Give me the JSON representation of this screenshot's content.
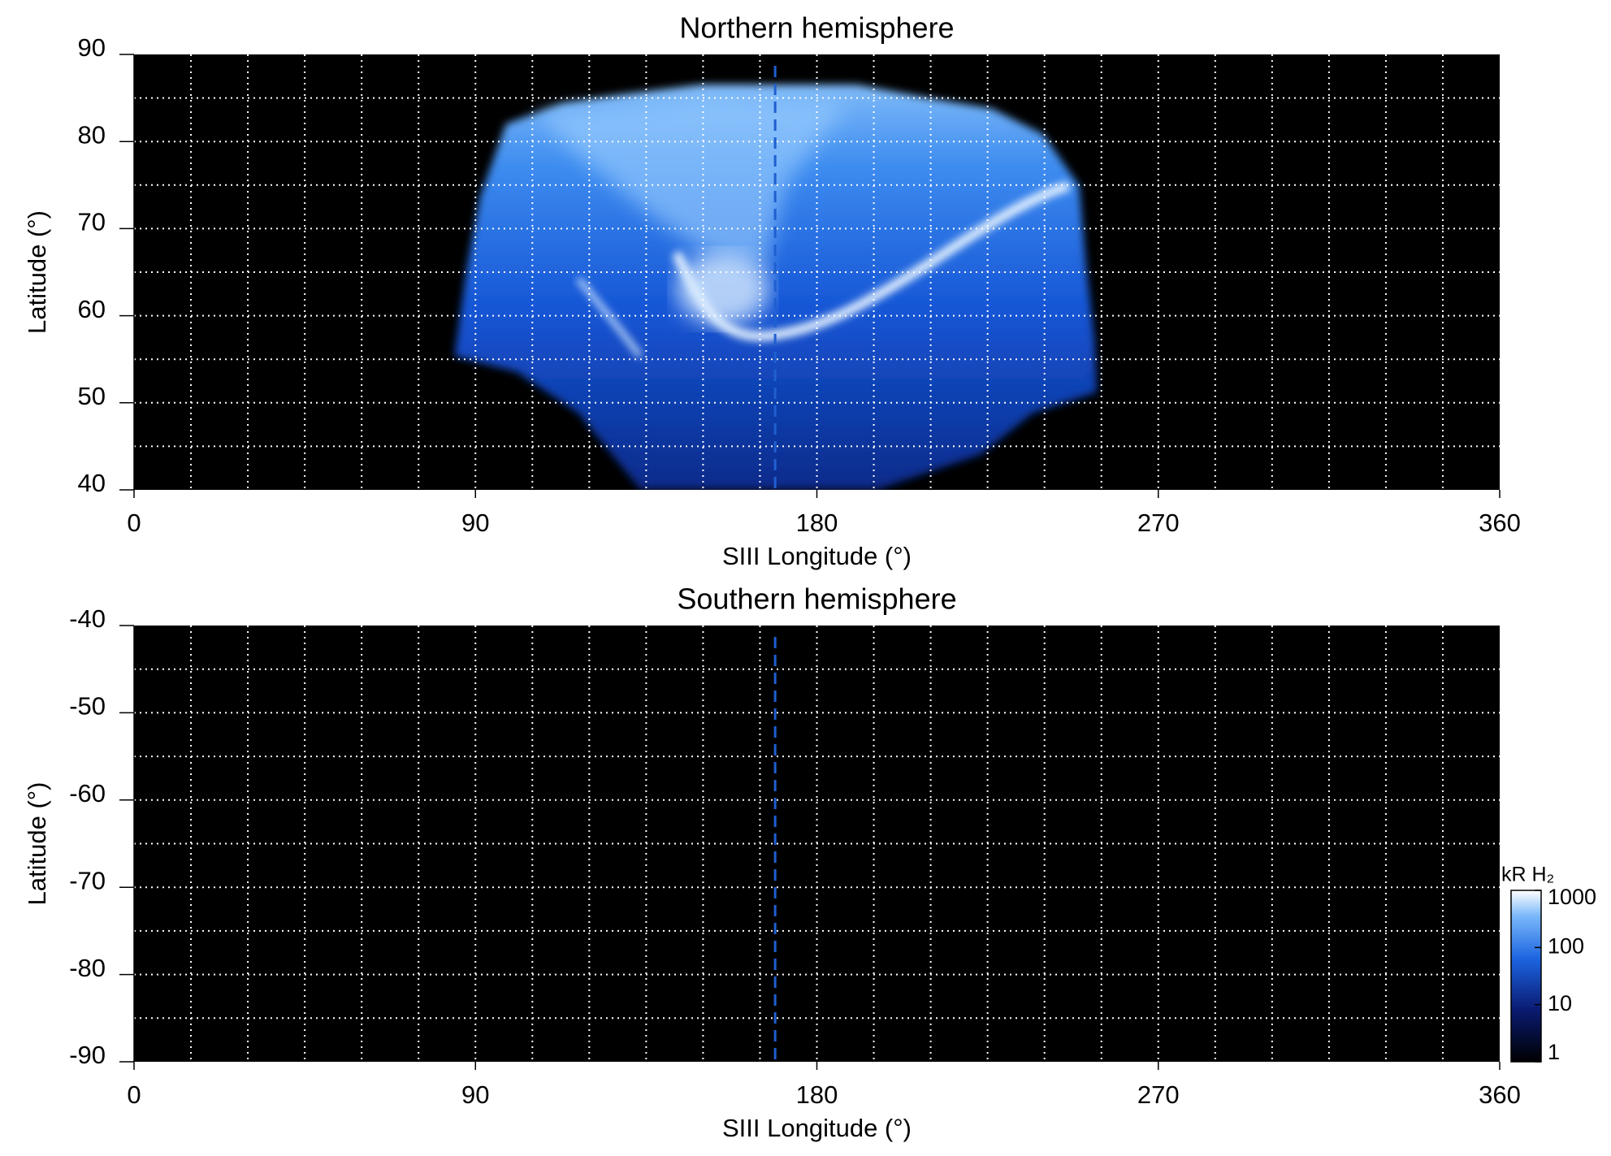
{
  "chart_data": [
    {
      "type": "heatmap",
      "title": "Northern hemisphere",
      "xlabel": "SIII Longitude (°)",
      "ylabel": "Latitude (°)",
      "xlim": [
        0,
        360
      ],
      "ylim": [
        40,
        90
      ],
      "xticks": [
        0,
        90,
        180,
        270,
        360
      ],
      "yticks": [
        40,
        50,
        60,
        70,
        80,
        90
      ],
      "x_gridlines": [
        15,
        30,
        45,
        60,
        75,
        90,
        105,
        120,
        135,
        150,
        165,
        180,
        195,
        210,
        225,
        240,
        255,
        270,
        285,
        300,
        315,
        330,
        345
      ],
      "y_gridlines": [
        45,
        50,
        55,
        60,
        65,
        70,
        75,
        80,
        85
      ],
      "marker_x": 169,
      "marker_color": "#1f5fd0"
    },
    {
      "type": "heatmap",
      "title": "Southern hemisphere",
      "xlabel": "SIII Longitude (°)",
      "ylabel": "Latitude (°)",
      "xlim": [
        0,
        360
      ],
      "ylim": [
        -90,
        -40
      ],
      "xticks": [
        0,
        90,
        180,
        270,
        360
      ],
      "yticks": [
        -90,
        -80,
        -70,
        -60,
        -50,
        -40
      ],
      "x_gridlines": [
        15,
        30,
        45,
        60,
        75,
        90,
        105,
        120,
        135,
        150,
        165,
        180,
        195,
        210,
        225,
        240,
        255,
        270,
        285,
        300,
        315,
        330,
        345
      ],
      "y_gridlines": [
        -85,
        -80,
        -75,
        -70,
        -65,
        -60,
        -55,
        -50,
        -45
      ],
      "marker_x": 169,
      "marker_color": "#1f5fd0",
      "colorbar": {
        "label": "kR H₂",
        "scale": "log",
        "lim": [
          1,
          1000
        ],
        "ticks": [
          1,
          10,
          100,
          1000
        ]
      }
    }
  ]
}
